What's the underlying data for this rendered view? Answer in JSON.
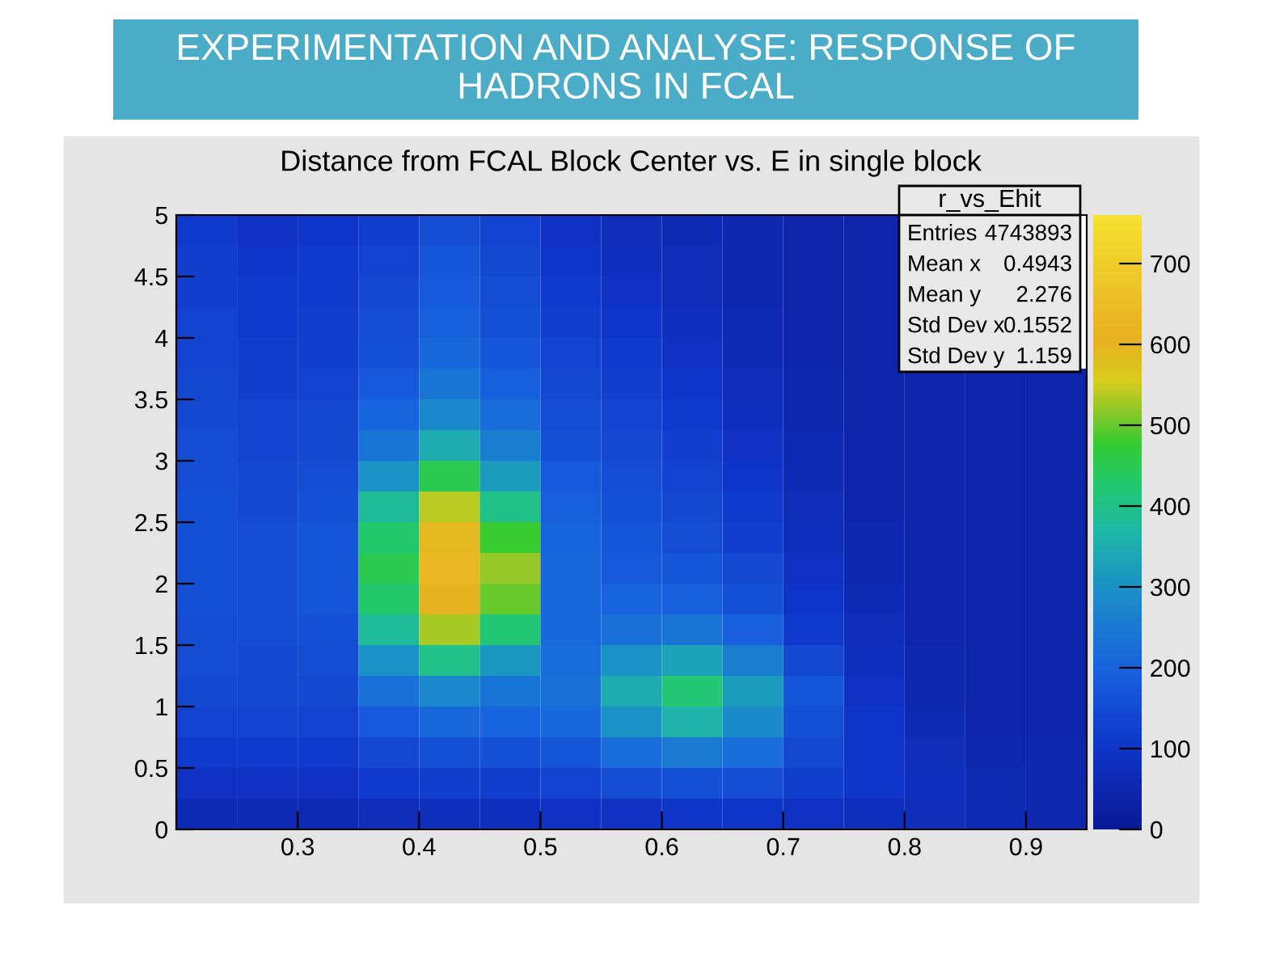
{
  "chart_data": {
    "type": "heatmap",
    "title": "EXPERIMENTATION AND ANALYSE: RESPONSE OF HADRONS IN FCAL",
    "subtitle": "Distance from FCAL Block Center vs. E in single block",
    "annotations": [
      "r_vs_Ehit",
      "Entries",
      "4743893",
      "Mean x",
      "0.4943",
      "Mean y",
      "2.276",
      "Std Dev x",
      "0.1552",
      "Std Dev y",
      "1.159"
    ],
    "xlim": [
      0.2,
      0.95
    ],
    "ylim": [
      0,
      5
    ],
    "xticks": [
      0.3,
      0.4,
      0.5,
      0.6,
      0.7,
      0.8,
      0.9
    ],
    "yticks": [
      0,
      0.5,
      1,
      1.5,
      2,
      2.5,
      3,
      3.5,
      4,
      4.5,
      5
    ],
    "clim": [
      0,
      760
    ],
    "cticks": [
      0,
      100,
      200,
      300,
      400,
      500,
      600,
      700
    ],
    "cells": [
      [
        110,
        90,
        100,
        120,
        150,
        130,
        90,
        70,
        60,
        50,
        40,
        40,
        null,
        null,
        null
      ],
      [
        120,
        100,
        110,
        130,
        170,
        140,
        100,
        80,
        70,
        50,
        40,
        40,
        null,
        null,
        null
      ],
      [
        120,
        110,
        110,
        140,
        180,
        150,
        110,
        90,
        70,
        50,
        40,
        40,
        null,
        null,
        null
      ],
      [
        130,
        110,
        120,
        150,
        190,
        160,
        120,
        100,
        80,
        60,
        40,
        40,
        null,
        null,
        null
      ],
      [
        130,
        120,
        120,
        160,
        210,
        170,
        130,
        110,
        90,
        60,
        40,
        40,
        null,
        null,
        null
      ],
      [
        140,
        120,
        130,
        180,
        240,
        190,
        140,
        120,
        100,
        70,
        50,
        40,
        40,
        40,
        40
      ],
      [
        140,
        130,
        140,
        200,
        280,
        220,
        150,
        130,
        110,
        80,
        50,
        40,
        40,
        40,
        40
      ],
      [
        150,
        130,
        140,
        240,
        350,
        260,
        160,
        140,
        120,
        90,
        60,
        40,
        40,
        40,
        40
      ],
      [
        150,
        140,
        150,
        300,
        450,
        320,
        180,
        150,
        130,
        100,
        60,
        40,
        40,
        40,
        40
      ],
      [
        160,
        140,
        160,
        380,
        540,
        400,
        190,
        160,
        140,
        110,
        70,
        40,
        40,
        40,
        40
      ],
      [
        160,
        150,
        170,
        430,
        590,
        480,
        200,
        170,
        150,
        120,
        80,
        50,
        40,
        40,
        40
      ],
      [
        160,
        150,
        170,
        450,
        630,
        520,
        210,
        180,
        170,
        140,
        90,
        50,
        40,
        40,
        40
      ],
      [
        160,
        150,
        170,
        430,
        600,
        500,
        210,
        200,
        190,
        160,
        100,
        60,
        40,
        40,
        40
      ],
      [
        150,
        150,
        160,
        380,
        530,
        420,
        210,
        230,
        240,
        190,
        110,
        70,
        40,
        40,
        40
      ],
      [
        150,
        140,
        150,
        300,
        400,
        310,
        220,
        300,
        330,
        260,
        140,
        80,
        50,
        40,
        40
      ],
      [
        140,
        140,
        140,
        230,
        280,
        240,
        230,
        350,
        420,
        320,
        170,
        90,
        50,
        40,
        40
      ],
      [
        130,
        130,
        130,
        180,
        210,
        200,
        210,
        300,
        360,
        290,
        160,
        100,
        60,
        40,
        40
      ],
      [
        110,
        110,
        110,
        140,
        160,
        160,
        170,
        220,
        250,
        220,
        140,
        100,
        70,
        50,
        50
      ],
      [
        90,
        90,
        90,
        110,
        120,
        120,
        130,
        150,
        160,
        150,
        120,
        100,
        80,
        60,
        50
      ],
      [
        60,
        60,
        60,
        70,
        80,
        80,
        90,
        90,
        100,
        100,
        90,
        80,
        70,
        60,
        50
      ]
    ]
  }
}
